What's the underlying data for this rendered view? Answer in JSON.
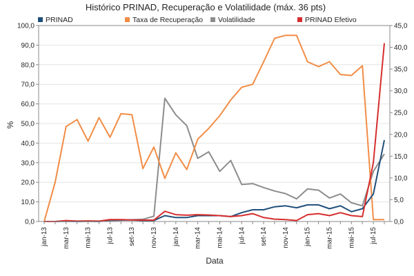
{
  "chart_data": {
    "type": "line",
    "title": "Histórico PRINAD, Recuperação e Volatilidade (máx. 36 pts)",
    "xlabel": "Data",
    "ylabel": "%",
    "ylim": [
      0,
      100
    ],
    "y2lim": [
      0,
      45
    ],
    "yticks": [
      "0,0",
      "10,0",
      "20,0",
      "30,0",
      "40,0",
      "50,0",
      "60,0",
      "70,0",
      "80,0",
      "90,0",
      "100,0"
    ],
    "y2ticks": [
      "0,0",
      "5,0",
      "10,0",
      "15,0",
      "20,0",
      "25,0",
      "30,0",
      "35,0",
      "40,0",
      "45,0"
    ],
    "grid": true,
    "legend_position": "top",
    "x": [
      "jan-13",
      "fev-13",
      "mar-13",
      "abr-13",
      "mai-13",
      "jun-13",
      "jul-13",
      "ago-13",
      "set-13",
      "out-13",
      "nov-13",
      "dez-13",
      "jan-14",
      "fev-14",
      "mar-14",
      "abr-14",
      "mai-14",
      "jun-14",
      "jul-14",
      "ago-14",
      "set-14",
      "out-14",
      "nov-14",
      "dez-14",
      "jan-15",
      "fev-15",
      "mar-15",
      "abr-15",
      "mai-15",
      "jun-15",
      "jul-15",
      "ago-15"
    ],
    "xtick_labels": [
      "jan-13",
      "mar-13",
      "mai-13",
      "jul-13",
      "set-13",
      "nov-13",
      "jan-14",
      "mar-14",
      "mai-14",
      "jul-14",
      "set-14",
      "nov-14",
      "jan-15",
      "mar-15",
      "mai-15",
      "jul-15"
    ],
    "series": [
      {
        "name": "PRINAD",
        "color": "#1f4e79",
        "axis": "left",
        "values": [
          0,
          0,
          0.3,
          0,
          0.2,
          0,
          0.8,
          0.8,
          0.8,
          0.5,
          0.5,
          3,
          2,
          2,
          3,
          3,
          3,
          2.5,
          4.5,
          6,
          6,
          7.5,
          8,
          7,
          8.5,
          8.5,
          6.5,
          8,
          5,
          6.5,
          14,
          41.5
        ]
      },
      {
        "name": "Taxa de Recuperação",
        "color": "#f28c45",
        "axis": "left",
        "values": [
          0,
          20,
          48.5,
          52,
          41,
          53,
          43,
          55,
          54.5,
          27,
          38,
          22,
          35,
          26.5,
          42,
          47.5,
          54,
          62,
          68.5,
          70,
          81.5,
          93.5,
          95,
          95,
          81.5,
          79,
          81.5,
          75,
          74.5,
          79.5,
          1,
          1
        ]
      },
      {
        "name": "Volatilidade",
        "color": "#8c8c8c",
        "axis": "right",
        "values": [
          0,
          0,
          0,
          0,
          0,
          0,
          0.2,
          0.3,
          0.4,
          0.5,
          1.2,
          28.3,
          24.5,
          22,
          14.5,
          16,
          11.5,
          14,
          8.5,
          8.7,
          7.8,
          7,
          6.4,
          5.2,
          7.5,
          7.2,
          5.4,
          6.3,
          4.3,
          3.6,
          11.5,
          15.5
        ]
      },
      {
        "name": "PRINAD Efetivo",
        "color": "#d62d2d",
        "axis": "left",
        "values": [
          0,
          0,
          0.5,
          0.2,
          0.3,
          0.2,
          1,
          1,
          0.8,
          0.7,
          0.7,
          5.2,
          3.5,
          3.2,
          3.5,
          3.3,
          3,
          2.5,
          3,
          4,
          2,
          1.2,
          1,
          0.5,
          3.5,
          4,
          3,
          4.5,
          3,
          2.5,
          30,
          91
        ]
      }
    ]
  }
}
